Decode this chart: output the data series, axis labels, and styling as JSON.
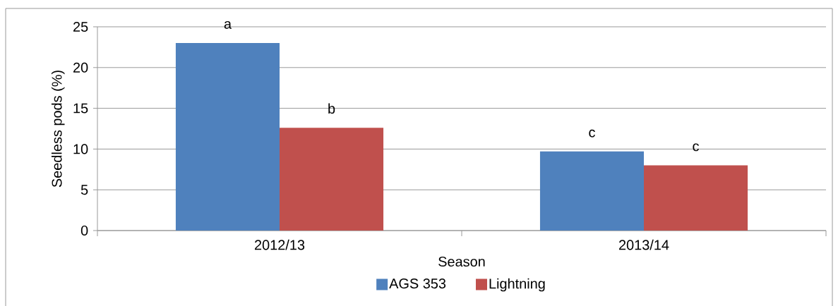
{
  "chart_data": {
    "type": "bar",
    "xlabel": "Season",
    "ylabel": "Seedless pods (%)",
    "categories": [
      "2012/13",
      "2013/14"
    ],
    "series": [
      {
        "name": "AGS 353",
        "color": "#4f81bd",
        "values": [
          23.0,
          9.7
        ]
      },
      {
        "name": "Lightning",
        "color": "#c0504d",
        "values": [
          12.6,
          8.0
        ]
      }
    ],
    "ylim": [
      0,
      25
    ],
    "yticks": [
      0,
      5,
      10,
      15,
      20,
      25
    ],
    "grid": "y",
    "legend": "bottom",
    "annotations": [
      "a",
      "b",
      "c",
      "c"
    ]
  }
}
